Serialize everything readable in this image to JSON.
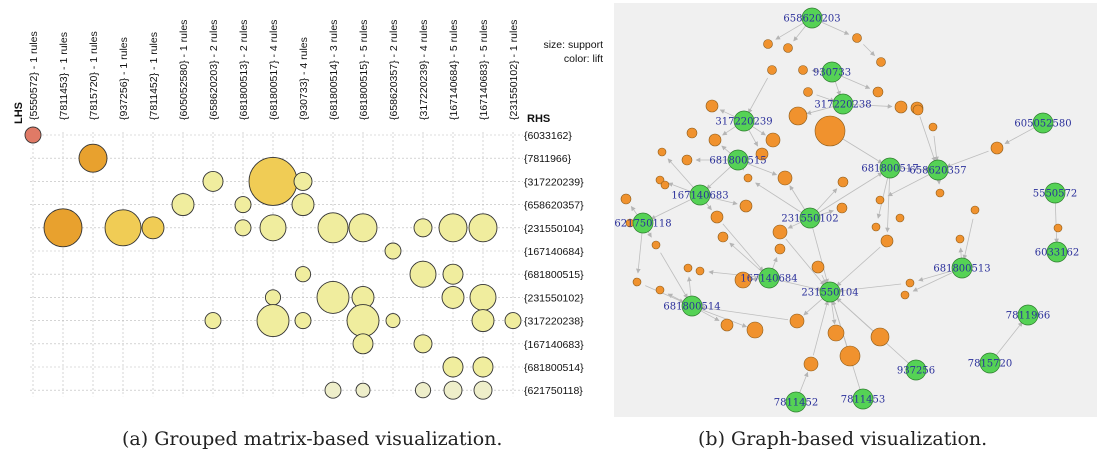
{
  "captions": {
    "left": "(a)  Grouped matrix-based visualization.",
    "right": "(b)  Graph-based visualization."
  },
  "colors": {
    "lift_high": "#e8a12e",
    "lift_mid": "#f0cc55",
    "lift_low": "#f0ed9e",
    "lift_lowest": "#eeeeca",
    "lift_extreme": "#e07a66",
    "bubble_stroke": "#333333",
    "grid": "#bbbbbb",
    "graph_bg": "#f0f0f0",
    "item_node": "#55d255",
    "rule_node": "#f0922e",
    "edge": "#bdbdbd",
    "label": "#2a2f9a"
  },
  "chart_data": [
    {
      "type": "scatter",
      "name_hint": "grouped-matrix",
      "title": "",
      "xlabel": "LHS",
      "ylabel": "RHS",
      "legend": {
        "lines": [
          "size: support",
          "color: lift"
        ],
        "position": "top-right"
      },
      "grid": true,
      "lhs_groups": [
        "{5550572} - 1 rules",
        "{7811453} - 1 rules",
        "{7815720} - 1 rules",
        "{937256} - 1 rules",
        "{7811452} - 1 rules",
        "{605052580} - 1 rules",
        "{658620203} - 2 rules",
        "{681800513} - 2 rules",
        "{681800517} - 4 rules",
        "{930733} - 4 rules",
        "{681800514} - 3 rules",
        "{681800515} - 5 rules",
        "{658620357} - 2 rules",
        "{317220239} - 4 rules",
        "{167140684} - 5 rules",
        "{167140683} - 5 rules",
        "{231550102} - 1 rules"
      ],
      "rhs_items": [
        "{6033162}",
        "{7811966}",
        "{317220239}",
        "{658620357}",
        "{231550104}",
        "{167140684}",
        "{681800515}",
        "{231550102}",
        "{317220238}",
        "{167140683}",
        "{681800514}",
        "{621750118}"
      ],
      "cells": [
        {
          "lhs": 0,
          "rhs": 0,
          "support": 0.2,
          "lift": "extreme"
        },
        {
          "lhs": 2,
          "rhs": 1,
          "support": 0.5,
          "lift": "high"
        },
        {
          "lhs": 8,
          "rhs": 2,
          "support": 1.0,
          "lift": "mid"
        },
        {
          "lhs": 6,
          "rhs": 2,
          "support": 0.3,
          "lift": "low"
        },
        {
          "lhs": 9,
          "rhs": 2,
          "support": 0.25,
          "lift": "low"
        },
        {
          "lhs": 5,
          "rhs": 3,
          "support": 0.35,
          "lift": "low"
        },
        {
          "lhs": 7,
          "rhs": 3,
          "support": 0.2,
          "lift": "low"
        },
        {
          "lhs": 9,
          "rhs": 3,
          "support": 0.35,
          "lift": "low"
        },
        {
          "lhs": 1,
          "rhs": 4,
          "support": 0.75,
          "lift": "high"
        },
        {
          "lhs": 3,
          "rhs": 4,
          "support": 0.7,
          "lift": "mid"
        },
        {
          "lhs": 4,
          "rhs": 4,
          "support": 0.35,
          "lift": "mid"
        },
        {
          "lhs": 7,
          "rhs": 4,
          "support": 0.2,
          "lift": "low"
        },
        {
          "lhs": 8,
          "rhs": 4,
          "support": 0.45,
          "lift": "low"
        },
        {
          "lhs": 10,
          "rhs": 4,
          "support": 0.55,
          "lift": "low"
        },
        {
          "lhs": 11,
          "rhs": 4,
          "support": 0.5,
          "lift": "low"
        },
        {
          "lhs": 13,
          "rhs": 4,
          "support": 0.25,
          "lift": "low"
        },
        {
          "lhs": 14,
          "rhs": 4,
          "support": 0.5,
          "lift": "low"
        },
        {
          "lhs": 15,
          "rhs": 4,
          "support": 0.5,
          "lift": "low"
        },
        {
          "lhs": 12,
          "rhs": 5,
          "support": 0.2,
          "lift": "low"
        },
        {
          "lhs": 9,
          "rhs": 6,
          "support": 0.18,
          "lift": "low"
        },
        {
          "lhs": 13,
          "rhs": 6,
          "support": 0.45,
          "lift": "low"
        },
        {
          "lhs": 14,
          "rhs": 6,
          "support": 0.3,
          "lift": "low"
        },
        {
          "lhs": 8,
          "rhs": 7,
          "support": 0.18,
          "lift": "low"
        },
        {
          "lhs": 10,
          "rhs": 7,
          "support": 0.6,
          "lift": "low"
        },
        {
          "lhs": 11,
          "rhs": 7,
          "support": 0.35,
          "lift": "low"
        },
        {
          "lhs": 14,
          "rhs": 7,
          "support": 0.35,
          "lift": "low"
        },
        {
          "lhs": 15,
          "rhs": 7,
          "support": 0.45,
          "lift": "low"
        },
        {
          "lhs": 6,
          "rhs": 8,
          "support": 0.2,
          "lift": "low"
        },
        {
          "lhs": 8,
          "rhs": 8,
          "support": 0.6,
          "lift": "low"
        },
        {
          "lhs": 9,
          "rhs": 8,
          "support": 0.2,
          "lift": "low"
        },
        {
          "lhs": 11,
          "rhs": 8,
          "support": 0.6,
          "lift": "low"
        },
        {
          "lhs": 12,
          "rhs": 8,
          "support": 0.15,
          "lift": "low"
        },
        {
          "lhs": 15,
          "rhs": 8,
          "support": 0.35,
          "lift": "low"
        },
        {
          "lhs": 16,
          "rhs": 8,
          "support": 0.2,
          "lift": "low"
        },
        {
          "lhs": 11,
          "rhs": 9,
          "support": 0.3,
          "lift": "low"
        },
        {
          "lhs": 13,
          "rhs": 9,
          "support": 0.25,
          "lift": "low"
        },
        {
          "lhs": 14,
          "rhs": 10,
          "support": 0.3,
          "lift": "low"
        },
        {
          "lhs": 15,
          "rhs": 10,
          "support": 0.3,
          "lift": "low"
        },
        {
          "lhs": 10,
          "rhs": 11,
          "support": 0.2,
          "lift": "lowest"
        },
        {
          "lhs": 11,
          "rhs": 11,
          "support": 0.15,
          "lift": "lowest"
        },
        {
          "lhs": 13,
          "rhs": 11,
          "support": 0.18,
          "lift": "lowest"
        },
        {
          "lhs": 14,
          "rhs": 11,
          "support": 0.25,
          "lift": "lowest"
        },
        {
          "lhs": 15,
          "rhs": 11,
          "support": 0.25,
          "lift": "lowest"
        }
      ]
    },
    {
      "type": "network",
      "name_hint": "graph",
      "title": "",
      "item_nodes": [
        {
          "id": "i658620203",
          "label": "658620203"
        },
        {
          "id": "i930733",
          "label": "930733"
        },
        {
          "id": "i317220238",
          "label": "317220238"
        },
        {
          "id": "i317220239",
          "label": "317220239"
        },
        {
          "id": "i605052580",
          "label": "605052580"
        },
        {
          "id": "i681800515",
          "label": "681800515"
        },
        {
          "id": "i681800517",
          "label": "681800517"
        },
        {
          "id": "i658620357",
          "label": "658620357"
        },
        {
          "id": "i167140683",
          "label": "167140683"
        },
        {
          "id": "i5550572",
          "label": "5550572"
        },
        {
          "id": "i231550102",
          "label": "231550102"
        },
        {
          "id": "i621750118",
          "label": "621750118"
        },
        {
          "id": "i6033162",
          "label": "6033162"
        },
        {
          "id": "i167140684",
          "label": "167140684"
        },
        {
          "id": "i681800513",
          "label": "681800513"
        },
        {
          "id": "i231550104",
          "label": "231550104"
        },
        {
          "id": "i681800514",
          "label": "681800514"
        },
        {
          "id": "i7811966",
          "label": "7811966"
        },
        {
          "id": "i7815720",
          "label": "7815720"
        },
        {
          "id": "i937256",
          "label": "937256"
        },
        {
          "id": "i7811452",
          "label": "7811452"
        },
        {
          "id": "i7811453",
          "label": "7811453"
        }
      ]
    }
  ]
}
